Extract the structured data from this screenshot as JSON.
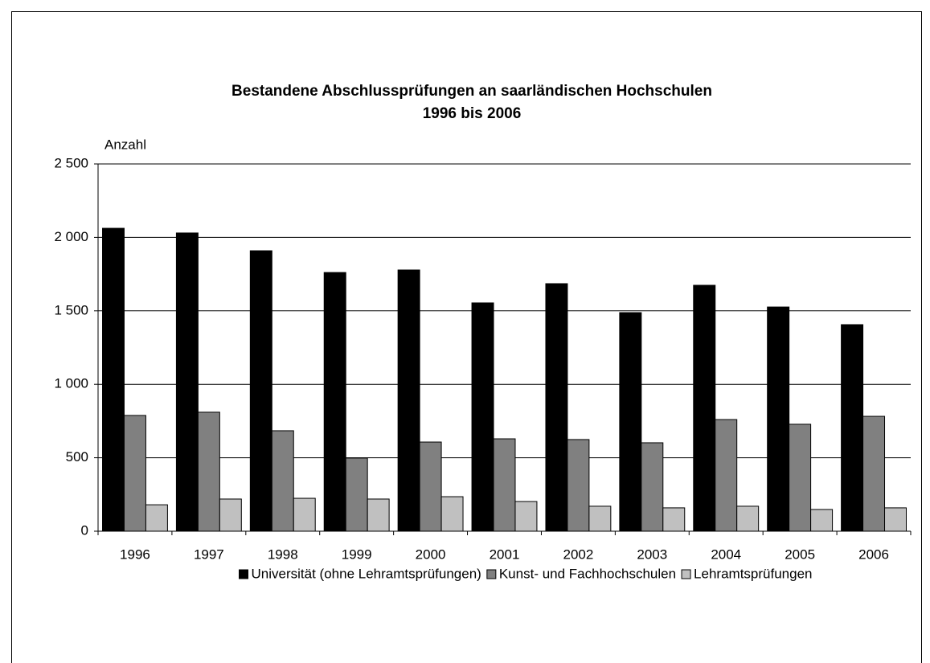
{
  "chart_data": {
    "type": "bar",
    "title_lines": [
      "Bestandene Abschlussprüfungen an saarländischen Hochschulen",
      "1996 bis 2006"
    ],
    "y_axis_label": "Anzahl",
    "categories": [
      "1996",
      "1997",
      "1998",
      "1999",
      "2000",
      "2001",
      "2002",
      "2003",
      "2004",
      "2005",
      "2006"
    ],
    "series": [
      {
        "name": "Universität (ohne Lehramtsprüfungen)",
        "color": "#000000",
        "values": [
          2062,
          2030,
          1909,
          1761,
          1778,
          1554,
          1685,
          1488,
          1674,
          1526,
          1406
        ]
      },
      {
        "name": "Kunst- und Fachhochschulen",
        "color": "#808080",
        "values": [
          788,
          810,
          684,
          498,
          607,
          629,
          624,
          602,
          760,
          728,
          782
        ]
      },
      {
        "name": "Lehramtsprüfungen",
        "color": "#c0c0c0",
        "values": [
          180,
          219,
          224,
          219,
          235,
          202,
          170,
          159,
          170,
          148,
          159
        ]
      }
    ],
    "ylim": [
      0,
      2500
    ],
    "yticks": [
      0,
      500,
      {
        "value": 1000,
        "label": "1 000"
      },
      {
        "value": 1500,
        "label": "1 500"
      },
      {
        "value": 2000,
        "label": "2 000"
      },
      {
        "value": 2500,
        "label": "2 500"
      }
    ],
    "grid": true,
    "legend": "bottom"
  }
}
